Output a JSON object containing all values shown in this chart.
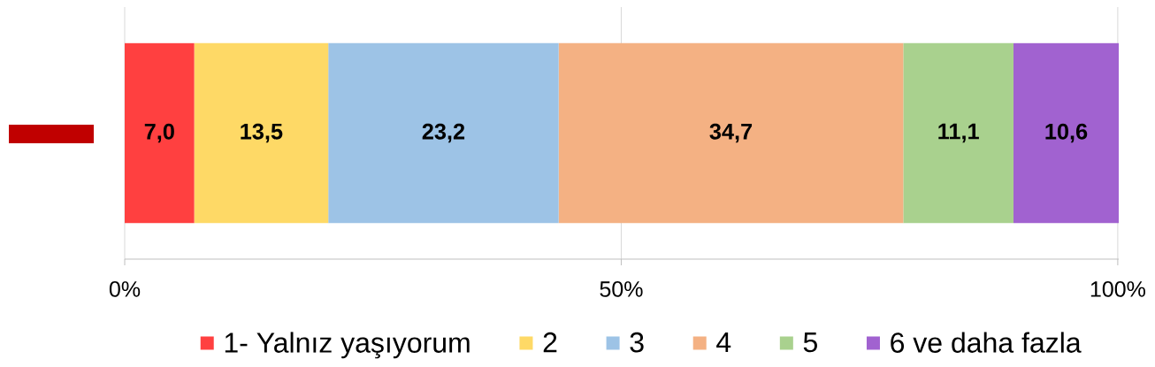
{
  "chart_data": {
    "type": "bar",
    "orientation": "horizontal",
    "stacked": true,
    "categories": [
      null
    ],
    "series": [
      {
        "name": "1- Yalnız yaşıyorum",
        "color": "#ff4040",
        "values": [
          7.0
        ],
        "value_labels": [
          "7,0"
        ]
      },
      {
        "name": "2",
        "color": "#fed966",
        "values": [
          13.5
        ],
        "value_labels": [
          "13,5"
        ]
      },
      {
        "name": "3",
        "color": "#9dc3e6",
        "values": [
          23.2
        ],
        "value_labels": [
          "23,2"
        ]
      },
      {
        "name": "4",
        "color": "#f4b183",
        "values": [
          34.7
        ],
        "value_labels": [
          "34,7"
        ]
      },
      {
        "name": "5",
        "color": "#a9d18e",
        "values": [
          11.1
        ],
        "value_labels": [
          "11,1"
        ]
      },
      {
        "name": "6 ve daha fazla",
        "color": "#a162d0",
        "values": [
          10.6
        ],
        "value_labels": [
          "10,6"
        ]
      }
    ],
    "xlim": [
      0,
      100.1
    ],
    "xticks": [
      {
        "value": 0,
        "label": "0%"
      },
      {
        "value": 50,
        "label": "50%"
      },
      {
        "value": 100,
        "label": "100%"
      }
    ],
    "grid": "x",
    "legend": "bottom"
  }
}
